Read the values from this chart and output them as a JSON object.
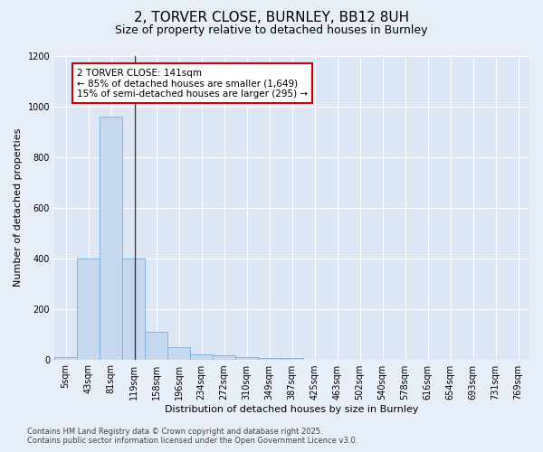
{
  "title": "2, TORVER CLOSE, BURNLEY, BB12 8UH",
  "subtitle": "Size of property relative to detached houses in Burnley",
  "xlabel": "Distribution of detached houses by size in Burnley",
  "ylabel": "Number of detached properties",
  "footer1": "Contains HM Land Registry data © Crown copyright and database right 2025.",
  "footer2": "Contains public sector information licensed under the Open Government Licence v3.0.",
  "bin_labels": [
    "5sqm",
    "43sqm",
    "81sqm",
    "119sqm",
    "158sqm",
    "196sqm",
    "234sqm",
    "272sqm",
    "310sqm",
    "349sqm",
    "387sqm",
    "425sqm",
    "463sqm",
    "502sqm",
    "540sqm",
    "578sqm",
    "616sqm",
    "654sqm",
    "693sqm",
    "731sqm",
    "769sqm"
  ],
  "bin_starts": [
    5,
    43,
    81,
    119,
    158,
    196,
    234,
    272,
    310,
    349,
    387,
    425,
    463,
    502,
    540,
    578,
    616,
    654,
    693,
    731,
    769
  ],
  "bar_values": [
    10,
    400,
    960,
    400,
    110,
    50,
    20,
    15,
    10,
    5,
    5,
    0,
    0,
    0,
    0,
    0,
    0,
    0,
    0,
    0,
    0
  ],
  "bar_color": "#c5d8f0",
  "bar_edge_color": "#7aadd4",
  "ylim": [
    0,
    1200
  ],
  "yticks": [
    0,
    200,
    400,
    600,
    800,
    1000,
    1200
  ],
  "property_size": 141,
  "marker_line_color": "#333333",
  "annotation_line1": "2 TORVER CLOSE: 141sqm",
  "annotation_line2": "← 85% of detached houses are smaller (1,649)",
  "annotation_line3": "15% of semi-detached houses are larger (295) →",
  "annotation_box_facecolor": "#ffffff",
  "annotation_box_edgecolor": "#cc0000",
  "bg_color": "#e8eef8",
  "plot_bg_color": "#dce6f5",
  "grid_color": "#ffffff",
  "title_fontsize": 11,
  "subtitle_fontsize": 9,
  "axis_label_fontsize": 8,
  "tick_fontsize": 7,
  "annotation_fontsize": 7.5,
  "footer_fontsize": 6
}
